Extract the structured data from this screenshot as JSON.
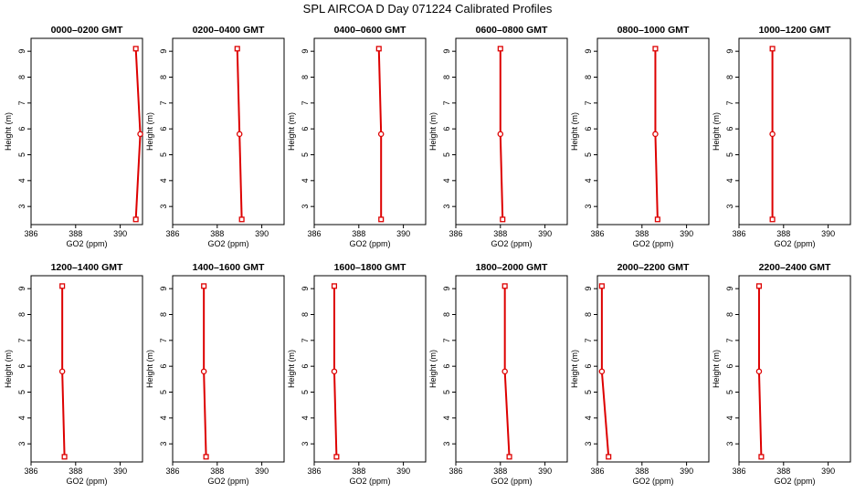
{
  "title": "SPL AIRCOA D  Day 071224  Calibrated Profiles",
  "chart_data": {
    "type": "line",
    "title": "SPL AIRCOA D  Day 071224  Calibrated Profiles",
    "xlabel": "GO2 (ppm)",
    "ylabel": "Height (m)",
    "xlim": [
      386,
      391
    ],
    "ylim": [
      2.3,
      9.5
    ],
    "x_ticks": [
      386,
      388,
      390
    ],
    "x_tick_labels": [
      "386",
      "388",
      "390"
    ],
    "y_ticks": [
      3,
      4,
      5,
      6,
      7,
      8,
      9
    ],
    "y_tick_labels": [
      "3",
      "4",
      "5",
      "6",
      "7",
      "8",
      "9"
    ],
    "heights": [
      2.5,
      5.8,
      9.1
    ],
    "line_color": "#dd0000",
    "panels": [
      {
        "title": "0000–0200 GMT",
        "x": [
          390.7,
          390.9,
          390.7
        ]
      },
      {
        "title": "0200–0400 GMT",
        "x": [
          389.1,
          389.0,
          388.9
        ]
      },
      {
        "title": "0400–0600 GMT",
        "x": [
          389.0,
          389.0,
          388.9
        ]
      },
      {
        "title": "0600–0800 GMT",
        "x": [
          388.1,
          388.0,
          388.0
        ]
      },
      {
        "title": "0800–1000 GMT",
        "x": [
          388.7,
          388.6,
          388.6
        ]
      },
      {
        "title": "1000–1200 GMT",
        "x": [
          387.5,
          387.5,
          387.5
        ]
      },
      {
        "title": "1200–1400 GMT",
        "x": [
          387.5,
          387.4,
          387.4
        ]
      },
      {
        "title": "1400–1600 GMT",
        "x": [
          387.5,
          387.4,
          387.4
        ]
      },
      {
        "title": "1600–1800 GMT",
        "x": [
          387.0,
          386.9,
          386.9
        ]
      },
      {
        "title": "1800–2000 GMT",
        "x": [
          388.4,
          388.2,
          388.2
        ]
      },
      {
        "title": "2000–2200 GMT",
        "x": [
          386.5,
          386.2,
          386.2
        ]
      },
      {
        "title": "2200–2400 GMT",
        "x": [
          387.0,
          386.9,
          386.9
        ]
      }
    ]
  }
}
